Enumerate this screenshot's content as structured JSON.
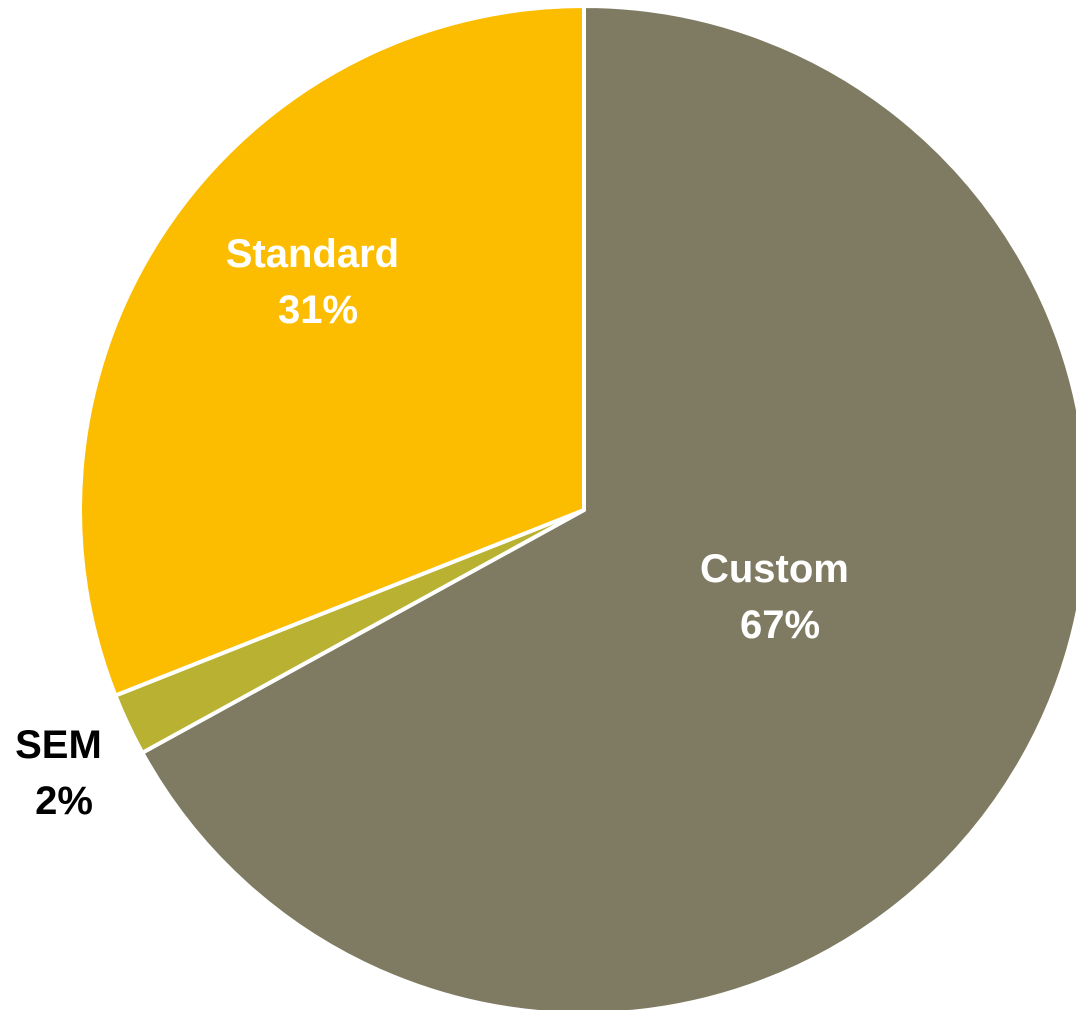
{
  "chart_data": {
    "type": "pie",
    "title": "",
    "start_angle_deg": 0,
    "direction": "clockwise",
    "slices": [
      {
        "name": "Custom",
        "value": 67,
        "label_pct": "67%",
        "color": "#7f7b63",
        "label_color": "#ffffff"
      },
      {
        "name": "SEM",
        "value": 2,
        "label_pct": "2%",
        "color": "#b8b132",
        "label_color": "#000000"
      },
      {
        "name": "Standard",
        "value": 31,
        "label_pct": "31%",
        "color": "#fcbd00",
        "label_color": "#ffffff"
      }
    ],
    "legend": "none"
  }
}
